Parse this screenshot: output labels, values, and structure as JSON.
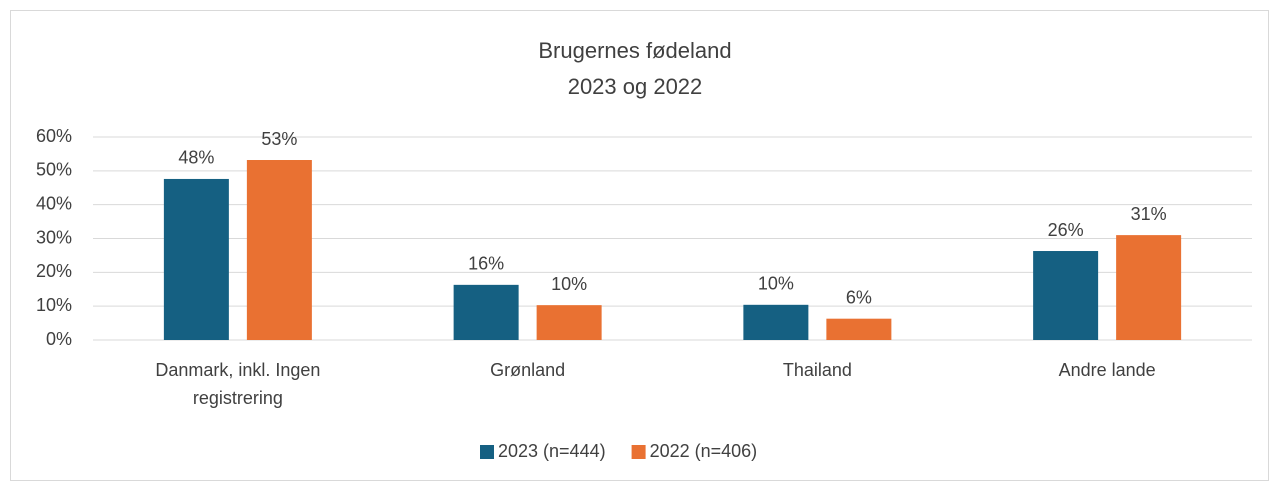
{
  "chart_data": {
    "type": "bar",
    "title": "Brugernes fødeland",
    "subtitle": "2023 og 2022",
    "categories": [
      "Danmark, inkl. Ingen registrering",
      "Grønland",
      "Thailand",
      "Andre lande"
    ],
    "series": [
      {
        "name": "2023 (n=444)",
        "color": "#156082",
        "values": [
          47.6,
          16.3,
          10.4,
          26.3
        ],
        "value_labels": [
          "48%",
          "16%",
          "10%",
          "26%"
        ]
      },
      {
        "name": "2022 (n=406)",
        "color": "#E97132",
        "values": [
          53.2,
          10.3,
          6.3,
          31
        ],
        "value_labels": [
          "53%",
          "10%",
          "6%",
          "31%"
        ]
      }
    ],
    "ylim": [
      0,
      60
    ],
    "yticks": [
      {
        "value": 0,
        "label": "0%"
      },
      {
        "value": 10,
        "label": "10%"
      },
      {
        "value": 20,
        "label": "20%"
      },
      {
        "value": 30,
        "label": "30%"
      },
      {
        "value": 40,
        "label": "40%"
      },
      {
        "value": 50,
        "label": "50%"
      },
      {
        "value": 60,
        "label": "60%"
      }
    ],
    "grid": true,
    "legend": "bottom"
  }
}
